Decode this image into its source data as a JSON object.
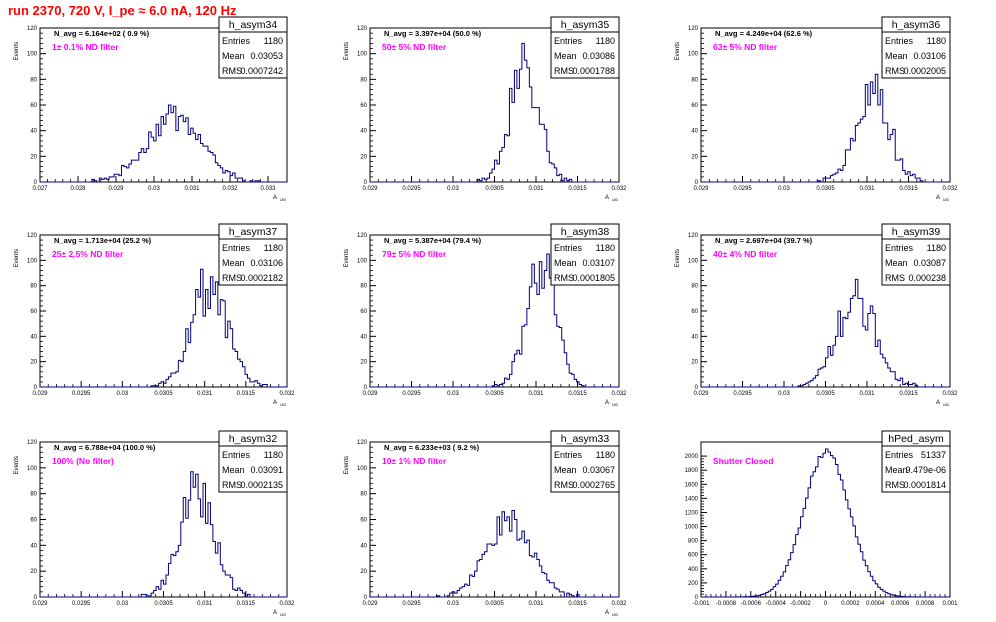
{
  "run_title": "run 2370,   720 V, I_pe ≈ 6.0 nA, 120 Hz",
  "stats_labels": {
    "entries": "Entries",
    "mean": "Mean",
    "rms": "RMS"
  },
  "chart_data": [
    {
      "type": "histogram",
      "name": "h_asym34",
      "navg_label": "N_avg = 6.164e+02 ( 0.9 %)",
      "filter_label": "1± 0.1% ND filter",
      "stats": {
        "entries": "1180",
        "mean": "0.03053",
        "rms": "0.0007242"
      },
      "ylabel": "Events",
      "xlabel": "A",
      "xlim": [
        0.027,
        0.0335
      ],
      "ylim": [
        0,
        120
      ],
      "xticks": [
        0.027,
        0.028,
        0.029,
        0.03,
        0.031,
        0.032,
        0.033
      ],
      "xtick_labels": [
        "0.027",
        "0.028",
        "0.029",
        "0.03",
        "0.031",
        "0.032",
        "0.033"
      ],
      "yticks": [
        0,
        20,
        40,
        60,
        80,
        100,
        120
      ],
      "mean": 0.03053,
      "rms": 0.0007242,
      "peak": 51,
      "shape": "broad"
    },
    {
      "type": "histogram",
      "name": "h_asym35",
      "navg_label": "N_avg = 3.397e+04 (50.0 %)",
      "filter_label": "50± 5% ND filter",
      "stats": {
        "entries": "1180",
        "mean": "0.03086",
        "rms": "0.0001788"
      },
      "ylabel": "Events",
      "xlabel": "A",
      "xlim": [
        0.029,
        0.032
      ],
      "ylim": [
        0,
        120
      ],
      "xticks": [
        0.029,
        0.0295,
        0.03,
        0.0305,
        0.031,
        0.0315,
        0.032
      ],
      "xtick_labels": [
        "0.029",
        "0.0295",
        "0.03",
        "0.0305",
        "0.031",
        "0.0315",
        "0.032"
      ],
      "yticks": [
        0,
        20,
        40,
        60,
        80,
        100,
        120
      ],
      "mean": 0.03086,
      "rms": 0.0001788,
      "peak": 87,
      "shape": "narrow"
    },
    {
      "type": "histogram",
      "name": "h_asym36",
      "navg_label": "N_avg = 4.249e+04 (62.6 %)",
      "filter_label": "63± 5% ND filter",
      "stats": {
        "entries": "1180",
        "mean": "0.03106",
        "rms": "0.0002005"
      },
      "ylabel": "Events",
      "xlabel": "A",
      "xlim": [
        0.029,
        0.032
      ],
      "ylim": [
        0,
        120
      ],
      "xticks": [
        0.029,
        0.0295,
        0.03,
        0.0305,
        0.031,
        0.0315,
        0.032
      ],
      "xtick_labels": [
        "0.029",
        "0.0295",
        "0.03",
        "0.0305",
        "0.031",
        "0.0315",
        "0.032"
      ],
      "yticks": [
        0,
        20,
        40,
        60,
        80,
        100,
        120
      ],
      "mean": 0.03106,
      "rms": 0.0002005,
      "peak": 75,
      "shape": "narrow"
    },
    {
      "type": "histogram",
      "name": "h_asym37",
      "navg_label": "N_avg = 1.713e+04 (25.2 %)",
      "filter_label": "25± 2.5% ND filter",
      "stats": {
        "entries": "1180",
        "mean": "0.03106",
        "rms": "0.0002182"
      },
      "ylabel": "Events",
      "xlabel": "A",
      "xlim": [
        0.029,
        0.032
      ],
      "ylim": [
        0,
        120
      ],
      "xticks": [
        0.029,
        0.0295,
        0.03,
        0.0305,
        0.031,
        0.0315,
        0.032
      ],
      "xtick_labels": [
        "0.029",
        "0.0295",
        "0.03",
        "0.0305",
        "0.031",
        "0.0315",
        "0.032"
      ],
      "yticks": [
        0,
        20,
        40,
        60,
        80,
        100,
        120
      ],
      "mean": 0.03106,
      "rms": 0.0002182,
      "peak": 80,
      "shape": "narrow"
    },
    {
      "type": "histogram",
      "name": "h_asym38",
      "navg_label": "N_avg = 5.387e+04 (79.4 %)",
      "filter_label": "79± 5% ND filter",
      "stats": {
        "entries": "1180",
        "mean": "0.03107",
        "rms": "0.0001805"
      },
      "ylabel": "Events",
      "xlabel": "A",
      "xlim": [
        0.029,
        0.032
      ],
      "ylim": [
        0,
        120
      ],
      "xticks": [
        0.029,
        0.0295,
        0.03,
        0.0305,
        0.031,
        0.0315,
        0.032
      ],
      "xtick_labels": [
        "0.029",
        "0.0295",
        "0.03",
        "0.0305",
        "0.031",
        "0.0315",
        "0.032"
      ],
      "yticks": [
        0,
        20,
        40,
        60,
        80,
        100,
        120
      ],
      "mean": 0.03107,
      "rms": 0.0001805,
      "peak": 90,
      "shape": "narrow"
    },
    {
      "type": "histogram",
      "name": "h_asym39",
      "navg_label": "N_avg = 2.697e+04 (39.7 %)",
      "filter_label": "40± 4% ND filter",
      "stats": {
        "entries": "1180",
        "mean": "0.03087",
        "rms": "0.000238"
      },
      "ylabel": "Events",
      "xlabel": "A",
      "xlim": [
        0.029,
        0.032
      ],
      "ylim": [
        0,
        120
      ],
      "xticks": [
        0.029,
        0.0295,
        0.03,
        0.0305,
        0.031,
        0.0315,
        0.032
      ],
      "xtick_labels": [
        "0.029",
        "0.0295",
        "0.03",
        "0.0305",
        "0.031",
        "0.0315",
        "0.032"
      ],
      "yticks": [
        0,
        20,
        40,
        60,
        80,
        100,
        120
      ],
      "mean": 0.03087,
      "rms": 0.000238,
      "peak": 70,
      "shape": "narrow"
    },
    {
      "type": "histogram",
      "name": "h_asym32",
      "navg_label": "N_avg = 6.788e+04 (100.0 %)",
      "filter_label": "100% (No filter)",
      "stats": {
        "entries": "1180",
        "mean": "0.03091",
        "rms": "0.0002135"
      },
      "ylabel": "Events",
      "xlabel": "A",
      "xlim": [
        0.029,
        0.032
      ],
      "ylim": [
        0,
        120
      ],
      "xticks": [
        0.029,
        0.0295,
        0.03,
        0.0305,
        0.031,
        0.0315,
        0.032
      ],
      "xtick_labels": [
        "0.029",
        "0.0295",
        "0.03",
        "0.0305",
        "0.031",
        "0.0315",
        "0.032"
      ],
      "yticks": [
        0,
        20,
        40,
        60,
        80,
        100,
        120
      ],
      "mean": 0.03091,
      "rms": 0.0002135,
      "peak": 80,
      "shape": "narrow"
    },
    {
      "type": "histogram",
      "name": "h_asym33",
      "navg_label": "N_avg = 6.233e+03 ( 9.2 %)",
      "filter_label": "10± 1% ND filter",
      "stats": {
        "entries": "1180",
        "mean": "0.03067",
        "rms": "0.0002765"
      },
      "ylabel": "Events",
      "xlabel": "A",
      "xlim": [
        0.029,
        0.032
      ],
      "ylim": [
        0,
        120
      ],
      "xticks": [
        0.029,
        0.0295,
        0.03,
        0.0305,
        0.031,
        0.0315,
        0.032
      ],
      "xtick_labels": [
        "0.029",
        "0.0295",
        "0.03",
        "0.0305",
        "0.031",
        "0.0315",
        "0.032"
      ],
      "yticks": [
        0,
        20,
        40,
        60,
        80,
        100,
        120
      ],
      "mean": 0.03067,
      "rms": 0.0002765,
      "peak": 58,
      "shape": "broad"
    },
    {
      "type": "histogram",
      "name": "hPed_asym",
      "navg_label": "",
      "filter_label": "Shutter Closed",
      "stats": {
        "entries": "51337",
        "mean": "9.479e-06",
        "rms": "0.0001814"
      },
      "ylabel": "",
      "xlabel": "",
      "xlim": [
        -0.001,
        0.001
      ],
      "ylim": [
        0,
        2200
      ],
      "xticks": [
        -0.001,
        -0.0008,
        -0.0006,
        -0.0004,
        -0.0002,
        0,
        0.0002,
        0.0004,
        0.0006,
        0.0008,
        0.001
      ],
      "xtick_labels": [
        "-0.001",
        "-0.0008",
        "-0.0006",
        "-0.0004",
        "-0.0002",
        "0",
        "0.0002",
        "0.0004",
        "0.0006",
        "0.0008",
        "0.001"
      ],
      "yticks": [
        0,
        200,
        400,
        600,
        800,
        1000,
        1200,
        1400,
        1600,
        1800,
        2000
      ],
      "mean": 9.479e-06,
      "rms": 0.0001814,
      "peak": 2080,
      "shape": "smooth"
    }
  ],
  "colors": {
    "line": "#000080",
    "title": "#ff0000",
    "filter": "#ff00ff",
    "axis": "#000000"
  }
}
